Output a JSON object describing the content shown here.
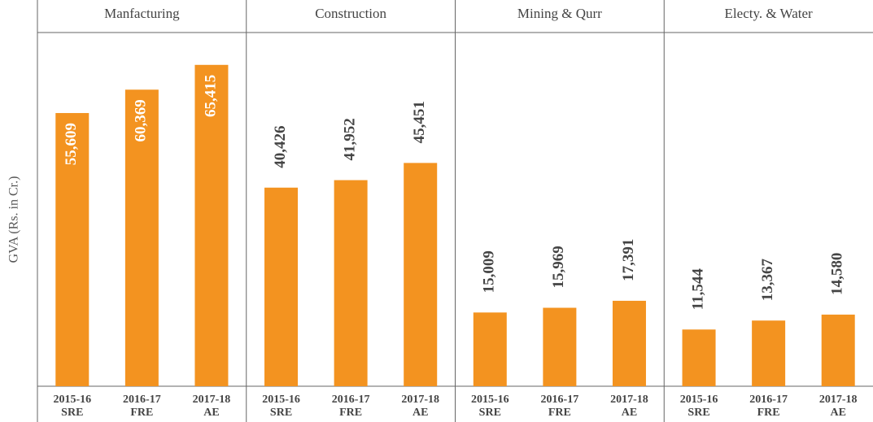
{
  "chart_data": [
    {
      "type": "bar",
      "title": "Manfacturing",
      "ylabel": "GVA (Rs. in Cr.)",
      "color": "#f39320",
      "label_position": "inside",
      "categories": [
        [
          "2015-16",
          "SRE"
        ],
        [
          "2016-17",
          "FRE"
        ],
        [
          "2017-18",
          "AE"
        ]
      ],
      "values": [
        55609,
        60369,
        65415
      ],
      "value_labels": [
        "55,609",
        "60,369",
        "65,415"
      ],
      "ylim": [
        0,
        72000
      ]
    },
    {
      "type": "bar",
      "title": "Construction",
      "color": "#f39320",
      "label_position": "outside",
      "categories": [
        [
          "2015-16",
          "SRE"
        ],
        [
          "2016-17",
          "FRE"
        ],
        [
          "2017-18",
          "AE"
        ]
      ],
      "values": [
        40426,
        41952,
        45451
      ],
      "value_labels": [
        "40,426",
        "41,952",
        "45,451"
      ],
      "ylim": [
        0,
        72000
      ]
    },
    {
      "type": "bar",
      "title": "Mining & Qurr",
      "color": "#f39320",
      "label_position": "outside",
      "categories": [
        [
          "2015-16",
          "SRE"
        ],
        [
          "2016-17",
          "FRE"
        ],
        [
          "2017-18",
          "AE"
        ]
      ],
      "values": [
        15009,
        15969,
        17391
      ],
      "value_labels": [
        "15,009",
        "15,969",
        "17,391"
      ],
      "ylim": [
        0,
        72000
      ]
    },
    {
      "type": "bar",
      "title": "Electy. & Water",
      "color": "#f39320",
      "label_position": "outside",
      "categories": [
        [
          "2015-16",
          "SRE"
        ],
        [
          "2016-17",
          "FRE"
        ],
        [
          "2017-18",
          "AE"
        ]
      ],
      "values": [
        11544,
        13367,
        14580
      ],
      "value_labels": [
        "11,544",
        "13,367",
        "14,580"
      ],
      "ylim": [
        0,
        72000
      ]
    }
  ]
}
